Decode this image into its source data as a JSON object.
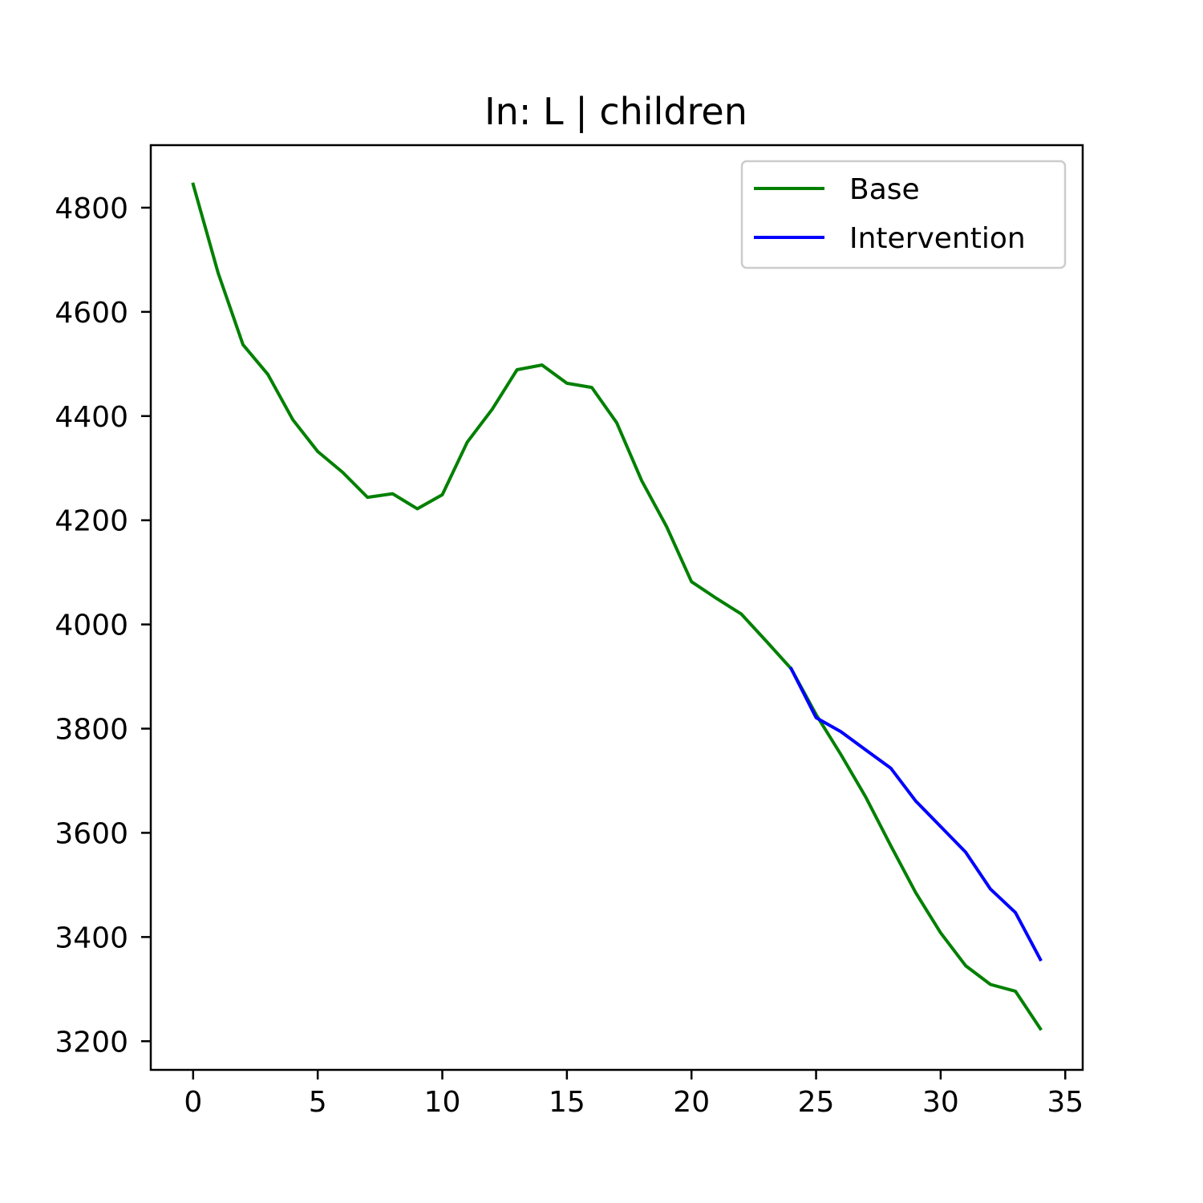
{
  "chart_data": {
    "type": "line",
    "title": "In: L | children",
    "xlabel": "",
    "ylabel": "",
    "xlim": [
      -1.7,
      35.7
    ],
    "ylim": [
      3145,
      4920
    ],
    "x_ticks": [
      0,
      5,
      10,
      15,
      20,
      25,
      30,
      35
    ],
    "y_ticks": [
      3200,
      3400,
      3600,
      3800,
      4000,
      4200,
      4400,
      4600,
      4800
    ],
    "grid": false,
    "legend_position": "top-right",
    "series": [
      {
        "name": "Base",
        "color": "#008000",
        "x": [
          0,
          1,
          2,
          3,
          4,
          5,
          6,
          7,
          8,
          9,
          10,
          11,
          12,
          13,
          14,
          15,
          16,
          17,
          18,
          19,
          20,
          21,
          22,
          23,
          24,
          25,
          26,
          27,
          28,
          29,
          30,
          31,
          32,
          33,
          34
        ],
        "y": [
          4845,
          4675,
          4537,
          4480,
          4393,
          4332,
          4292,
          4244,
          4251,
          4222,
          4249,
          4350,
          4413,
          4489,
          4498,
          4463,
          4455,
          4387,
          4276,
          4188,
          4082,
          4050,
          4020,
          3968,
          3915,
          3827,
          3750,
          3668,
          3575,
          3485,
          3408,
          3345,
          3309,
          3296,
          3224
        ]
      },
      {
        "name": "Intervention",
        "color": "#0000ff",
        "x": [
          24,
          25,
          26,
          27,
          28,
          29,
          30,
          31,
          32,
          33,
          34
        ],
        "y": [
          3915,
          3821,
          3794,
          3759,
          3724,
          3661,
          3612,
          3563,
          3492,
          3447,
          3357
        ]
      }
    ]
  }
}
